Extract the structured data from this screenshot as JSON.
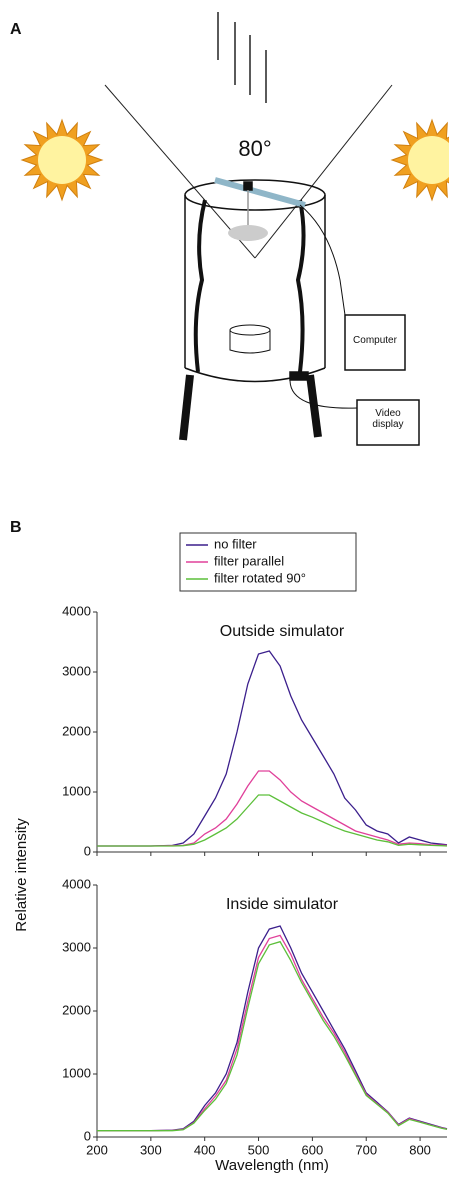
{
  "panel_a": {
    "label": "A",
    "angle": "80°",
    "computer": "Computer",
    "video": "Video display"
  },
  "panel_b": {
    "label": "B"
  },
  "chart_data": [
    {
      "type": "line",
      "title": "Outside simulator",
      "x": [
        200,
        250,
        300,
        340,
        360,
        380,
        400,
        420,
        440,
        460,
        480,
        500,
        520,
        540,
        560,
        580,
        600,
        620,
        640,
        660,
        680,
        700,
        720,
        740,
        760,
        780,
        800,
        820,
        840,
        850
      ],
      "series": [
        {
          "name": "no filter",
          "color": "#3b1f8c",
          "values": [
            100,
            100,
            100,
            110,
            150,
            300,
            600,
            900,
            1300,
            2000,
            2800,
            3300,
            3350,
            3100,
            2600,
            2200,
            1900,
            1600,
            1300,
            900,
            700,
            450,
            350,
            300,
            150,
            250,
            200,
            150,
            130,
            120
          ]
        },
        {
          "name": "filter parallel",
          "color": "#e0409a",
          "values": [
            100,
            100,
            100,
            105,
            110,
            150,
            300,
            400,
            550,
            800,
            1100,
            1350,
            1350,
            1200,
            1000,
            850,
            750,
            650,
            550,
            450,
            350,
            300,
            250,
            200,
            130,
            150,
            140,
            120,
            115,
            110
          ]
        },
        {
          "name": "filter rotated 90°",
          "color": "#5cbf3a",
          "values": [
            100,
            100,
            100,
            100,
            105,
            130,
            200,
            300,
            400,
            550,
            750,
            950,
            950,
            850,
            750,
            650,
            580,
            500,
            420,
            350,
            300,
            250,
            200,
            170,
            110,
            130,
            120,
            110,
            105,
            100
          ]
        }
      ],
      "xlim": [
        200,
        850
      ],
      "ylim": [
        0,
        4000
      ],
      "yticks": [
        0,
        1000,
        2000,
        3000,
        4000
      ]
    },
    {
      "type": "line",
      "title": "Inside simulator",
      "x": [
        200,
        250,
        300,
        340,
        360,
        380,
        400,
        420,
        440,
        460,
        480,
        500,
        520,
        540,
        560,
        580,
        600,
        620,
        640,
        660,
        680,
        700,
        720,
        740,
        760,
        780,
        800,
        820,
        840,
        850
      ],
      "series": [
        {
          "name": "no filter",
          "color": "#3b1f8c",
          "values": [
            100,
            100,
            100,
            110,
            130,
            250,
            500,
            700,
            1000,
            1500,
            2300,
            3000,
            3300,
            3350,
            3000,
            2600,
            2300,
            2000,
            1700,
            1400,
            1050,
            700,
            550,
            400,
            200,
            300,
            250,
            200,
            150,
            130
          ]
        },
        {
          "name": "filter parallel",
          "color": "#e0409a",
          "values": [
            100,
            100,
            100,
            105,
            120,
            230,
            450,
            650,
            900,
            1400,
            2150,
            2850,
            3150,
            3200,
            2900,
            2500,
            2200,
            1900,
            1650,
            1350,
            1000,
            680,
            530,
            390,
            190,
            290,
            240,
            190,
            145,
            125
          ]
        },
        {
          "name": "filter rotated 90°",
          "color": "#5cbf3a",
          "values": [
            100,
            100,
            100,
            100,
            115,
            220,
            420,
            600,
            850,
            1300,
            2050,
            2750,
            3050,
            3100,
            2800,
            2450,
            2150,
            1850,
            1600,
            1300,
            980,
            660,
            520,
            380,
            180,
            280,
            235,
            185,
            140,
            120
          ]
        }
      ],
      "xlim": [
        200,
        850
      ],
      "ylim": [
        0,
        4000
      ],
      "yticks": [
        0,
        1000,
        2000,
        3000,
        4000
      ],
      "xticks": [
        200,
        300,
        400,
        500,
        600,
        700,
        800
      ],
      "xlabel": "Wavelength (nm)",
      "ylabel": "Relative intensity"
    }
  ]
}
